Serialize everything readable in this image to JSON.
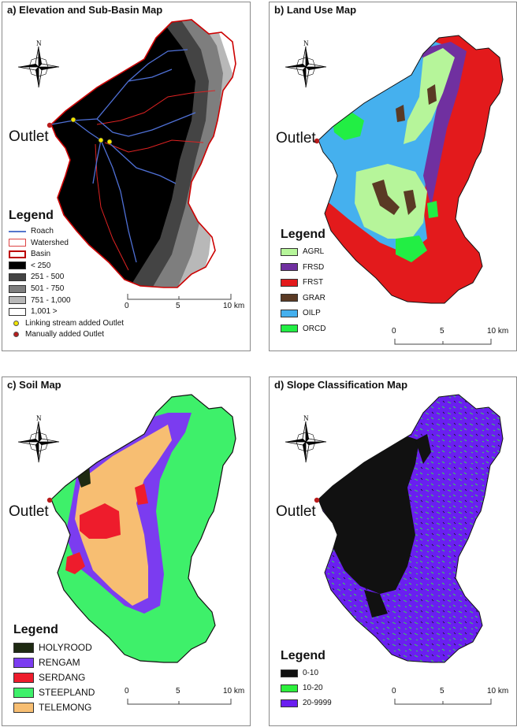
{
  "panels": {
    "a": {
      "title": "a) Elevation and Sub-Basin Map",
      "outlet": "Outlet",
      "legend_title": "Legend",
      "legend": [
        {
          "label": "Roach",
          "kind": "line",
          "color": "#5577cc"
        },
        {
          "label": "Watershed",
          "kind": "outline",
          "color": "#d44"
        },
        {
          "label": "Basin",
          "kind": "thickoutline",
          "color": "#b00"
        },
        {
          "label": "< 250",
          "kind": "fill",
          "color": "#000000"
        },
        {
          "label": "251 - 500",
          "kind": "fill",
          "color": "#444444"
        },
        {
          "label": "501 - 750",
          "kind": "fill",
          "color": "#7e7e7e"
        },
        {
          "label": "751 - 1,000",
          "kind": "fill",
          "color": "#b8b8b8"
        },
        {
          "label": "1,001 >",
          "kind": "fill",
          "color": "#ffffff"
        },
        {
          "label": "Linking stream added Outlet",
          "kind": "dot",
          "color": "#f2e600"
        },
        {
          "label": "Manually added Outlet",
          "kind": "dot",
          "color": "#b81c1c"
        }
      ],
      "scale": [
        "0",
        "5",
        "10 km"
      ]
    },
    "b": {
      "title": "b) Land Use Map",
      "outlet": "Outlet",
      "legend_title": "Legend",
      "legend": [
        {
          "label": "AGRL",
          "color": "#b6f59a"
        },
        {
          "label": "FRSD",
          "color": "#7030a0"
        },
        {
          "label": "FRST",
          "color": "#e31a1c"
        },
        {
          "label": "GRAR",
          "color": "#5a3a24"
        },
        {
          "label": "OILP",
          "color": "#45b0ee"
        },
        {
          "label": "ORCD",
          "color": "#22ee44"
        }
      ],
      "scale": [
        "0",
        "5",
        "10 km"
      ]
    },
    "c": {
      "title": "c) Soil Map",
      "outlet": "Outlet",
      "legend_title": "Legend",
      "legend": [
        {
          "label": "HOLYROOD",
          "color": "#1e2a12"
        },
        {
          "label": "RENGAM",
          "color": "#7b3cf0"
        },
        {
          "label": "SERDANG",
          "color": "#ee1c2c"
        },
        {
          "label": "STEEPLAND",
          "color": "#3ef06a"
        },
        {
          "label": "TELEMONG",
          "color": "#f7be72"
        }
      ],
      "scale": [
        "0",
        "5",
        "10 km"
      ]
    },
    "d": {
      "title": "d) Slope Classification Map",
      "outlet": "Outlet",
      "legend_title": "Legend",
      "legend": [
        {
          "label": "0-10",
          "color": "#111111"
        },
        {
          "label": "10-20",
          "color": "#2cf03c"
        },
        {
          "label": "20-9999",
          "color": "#6a1ff0"
        }
      ],
      "scale": [
        "0",
        "5",
        "10 km"
      ]
    }
  },
  "north_label": "N"
}
